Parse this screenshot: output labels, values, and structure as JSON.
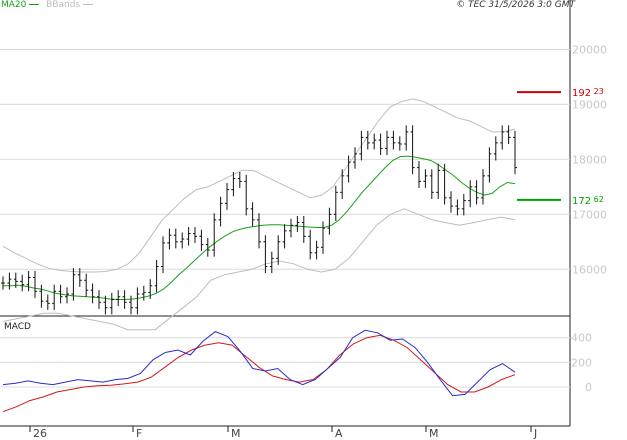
{
  "header": {
    "legend_ma": "MA20",
    "legend_bb": "BBands",
    "copyright": "© TEC 31/5/2026 3:0 GMT"
  },
  "macd_panel": {
    "label": "MACD"
  },
  "colors": {
    "ma20": "#19a019",
    "bbands": "#bdbdbd",
    "price": "#111111",
    "macd": "#2a2ad0",
    "signal": "#d01a1a",
    "resistance": "#cc0000",
    "support": "#00a000",
    "grid": "#dcdcdc"
  },
  "chart_data": [
    {
      "type": "ohlc",
      "title": "",
      "x_tick_labels": [
        "26",
        "F",
        "M",
        "A",
        "M",
        "J"
      ],
      "y_ticks": [
        16000,
        17000,
        18000,
        19000,
        20000
      ],
      "ylim": [
        15150,
        20900
      ],
      "grid": true,
      "legend": "top-left",
      "levels": [
        {
          "name": "resistance",
          "value": 19223,
          "major": "192",
          "minor": "23"
        },
        {
          "name": "support",
          "value": 17262,
          "major": "172",
          "minor": "62"
        }
      ],
      "close": [
        15750,
        15820,
        15780,
        15720,
        15850,
        15600,
        15420,
        15380,
        15600,
        15500,
        15550,
        15900,
        15800,
        15620,
        15500,
        15400,
        15300,
        15450,
        15500,
        15400,
        15300,
        15550,
        15580,
        15700,
        16050,
        16480,
        16620,
        16500,
        16550,
        16650,
        16600,
        16450,
        16350,
        16900,
        17200,
        17450,
        17650,
        17600,
        17100,
        16900,
        16500,
        16050,
        16200,
        16500,
        16700,
        16800,
        16850,
        16600,
        16300,
        16400,
        16750,
        17000,
        17400,
        17700,
        17950,
        18100,
        18400,
        18300,
        18350,
        18200,
        18400,
        18300,
        18280,
        18500,
        17850,
        17600,
        17700,
        17400,
        17800,
        17300,
        17150,
        17100,
        17250,
        17500,
        17300,
        17700,
        18100,
        18300,
        18500,
        18400,
        17850
      ],
      "ma20": [
        15700,
        15700,
        15710,
        15690,
        15660,
        15640,
        15600,
        15560,
        15540,
        15520,
        15510,
        15500,
        15490,
        15480,
        15460,
        15450,
        15450,
        15460,
        15480,
        15510,
        15560,
        15640,
        15760,
        15900,
        16020,
        16150,
        16280,
        16400,
        16510,
        16600,
        16680,
        16730,
        16760,
        16780,
        16800,
        16810,
        16810,
        16800,
        16790,
        16780,
        16770,
        16760,
        16760,
        16800,
        16900,
        17050,
        17220,
        17400,
        17550,
        17700,
        17850,
        17980,
        18050,
        18060,
        18040,
        18010,
        17980,
        17900,
        17800,
        17700,
        17580,
        17480,
        17400,
        17350,
        17380,
        17500,
        17580,
        17560
      ],
      "bb_upper": [
        16420,
        16300,
        16200,
        16100,
        16020,
        15980,
        15960,
        15950,
        15950,
        15960,
        16000,
        16100,
        16300,
        16600,
        16900,
        17100,
        17300,
        17450,
        17500,
        17600,
        17700,
        17800,
        17800,
        17700,
        17600,
        17500,
        17400,
        17300,
        17350,
        17500,
        17800,
        18100,
        18400,
        18700,
        18950,
        19050,
        19100,
        19050,
        18950,
        18850,
        18750,
        18700,
        18600,
        18500,
        18500,
        18550
      ],
      "bb_lower": [
        15050,
        15100,
        15150,
        15200,
        15200,
        15150,
        15100,
        15050,
        15000,
        14900,
        14900,
        14900,
        15100,
        15300,
        15500,
        15800,
        15900,
        15950,
        16000,
        16100,
        16150,
        16100,
        16000,
        15950,
        16000,
        16200,
        16500,
        16800,
        17000,
        17100,
        17000,
        16900,
        16850,
        16800,
        16850,
        16900,
        16950,
        16900
      ],
      "macd": [
        20,
        30,
        50,
        30,
        20,
        40,
        60,
        50,
        40,
        60,
        70,
        110,
        220,
        280,
        300,
        260,
        370,
        450,
        410,
        290,
        150,
        130,
        150,
        60,
        20,
        60,
        150,
        240,
        400,
        460,
        440,
        380,
        390,
        320,
        200,
        60,
        -70,
        -60,
        40,
        140,
        190,
        120
      ],
      "signal": [
        -200,
        -160,
        -110,
        -80,
        -40,
        -20,
        0,
        10,
        15,
        25,
        40,
        80,
        160,
        240,
        300,
        340,
        360,
        340,
        250,
        160,
        90,
        60,
        40,
        60,
        140,
        260,
        350,
        400,
        420,
        380,
        320,
        220,
        120,
        20,
        -40,
        -40,
        0,
        60,
        100
      ],
      "macd_y_ticks": [
        0,
        200,
        400
      ]
    }
  ]
}
